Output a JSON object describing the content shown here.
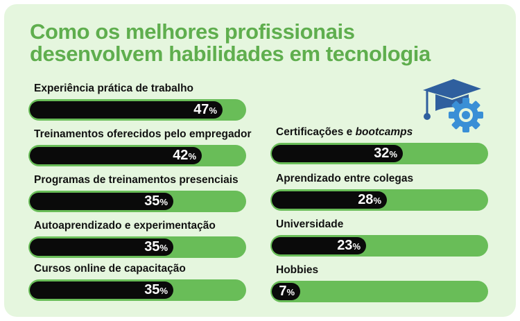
{
  "title": {
    "line1": "Como os melhores profissionais",
    "line2": "desenvolvem habilidades em tecnologia"
  },
  "colors": {
    "card_background": "#e5f6de",
    "title": "#5fae4e",
    "track": "#69bd58",
    "fill": "#0a0a0a",
    "icon_cap": "#2f5f9e",
    "icon_gear": "#3a8fd6"
  },
  "icon": "graduation-cap-with-gear-icon",
  "chart_data": {
    "type": "bar",
    "orientation": "horizontal",
    "unit": "%",
    "ylim": [
      0,
      100
    ],
    "categories": [
      "Experiência prática de trabalho",
      "Treinamentos oferecidos pelo empregador",
      "Programas de treinamentos presenciais",
      "Autoaprendizado e experimentação",
      "Cursos online de capacitação",
      "Certificações e bootcamps",
      "Aprendizado entre colegas",
      "Universidade",
      "Hobbies"
    ],
    "values": [
      47,
      42,
      35,
      35,
      35,
      32,
      28,
      23,
      7
    ],
    "bars": [
      {
        "label": "Experiência prática de trabalho",
        "value": 47,
        "value_text": "47",
        "unit_text": "%"
      },
      {
        "label": "Treinamentos oferecidos pelo empregador",
        "value": 42,
        "value_text": "42",
        "unit_text": "%"
      },
      {
        "label": "Programas de treinamentos presenciais",
        "value": 35,
        "value_text": "35",
        "unit_text": "%"
      },
      {
        "label": "Autoaprendizado e experimentação",
        "value": 35,
        "value_text": "35",
        "unit_text": "%"
      },
      {
        "label": "Cursos online de capacitação",
        "value": 35,
        "value_text": "35",
        "unit_text": "%"
      },
      {
        "label_prefix": "Certificações e ",
        "label_emph": "bootcamps",
        "value": 32,
        "value_text": "32",
        "unit_text": "%"
      },
      {
        "label": "Aprendizado entre colegas",
        "value": 28,
        "value_text": "28",
        "unit_text": "%"
      },
      {
        "label": "Universidade",
        "value": 23,
        "value_text": "23",
        "unit_text": "%"
      },
      {
        "label": "Hobbies",
        "value": 7,
        "value_text": "7",
        "unit_text": "%"
      }
    ]
  }
}
